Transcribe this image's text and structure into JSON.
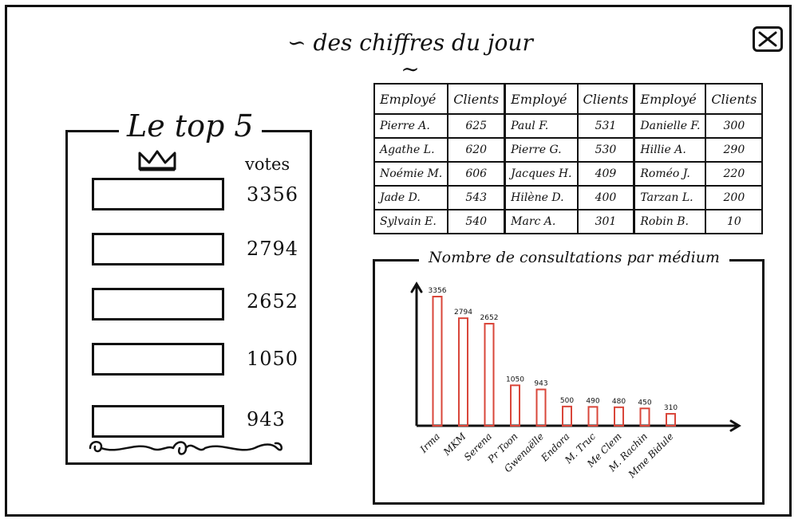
{
  "header": {
    "title": "∽ des chiffres du jour ∼",
    "close_icon": "close-icon"
  },
  "top5": {
    "title": "Le top 5",
    "votes_label": "votes",
    "entries": [
      {
        "vote": "3356"
      },
      {
        "vote": "2794"
      },
      {
        "vote": "2652"
      },
      {
        "vote": "1050"
      },
      {
        "vote": "943"
      }
    ],
    "crown_icon": "crown-icon",
    "ornament_icon": "scroll-ornament-icon"
  },
  "employees_table": {
    "headers": [
      "Employé",
      "Clients",
      "Employé",
      "Clients",
      "Employé",
      "Clients"
    ],
    "rows": [
      [
        "Pierre A.",
        "625",
        "Paul F.",
        "531",
        "Danielle F.",
        "300"
      ],
      [
        "Agathe L.",
        "620",
        "Pierre G.",
        "530",
        "Hillie A.",
        "290"
      ],
      [
        "Noémie M.",
        "606",
        "Jacques H.",
        "409",
        "Roméo J.",
        "220"
      ],
      [
        "Jade D.",
        "543",
        "Hilène D.",
        "400",
        "Tarzan L.",
        "200"
      ],
      [
        "Sylvain E.",
        "540",
        "Marc A.",
        "301",
        "Robin B.",
        "10"
      ]
    ]
  },
  "chart_data": {
    "type": "bar",
    "title": "Nombre de consultations par médium",
    "categories": [
      "Irma",
      "MKM",
      "Serena",
      "Pr Toon",
      "Gwenaëlle",
      "Endora",
      "M. Truc",
      "Me Clem",
      "M. Rachin",
      "Mme Bidule"
    ],
    "values": [
      3356,
      2794,
      2652,
      1050,
      943,
      500,
      490,
      480,
      450,
      310
    ],
    "value_labels": [
      "3356",
      "2794",
      "2652",
      "1050",
      "943",
      "500",
      "490",
      "480",
      "450",
      "310"
    ],
    "bar_color": "#d9463a",
    "xlabel": "",
    "ylabel": ""
  }
}
